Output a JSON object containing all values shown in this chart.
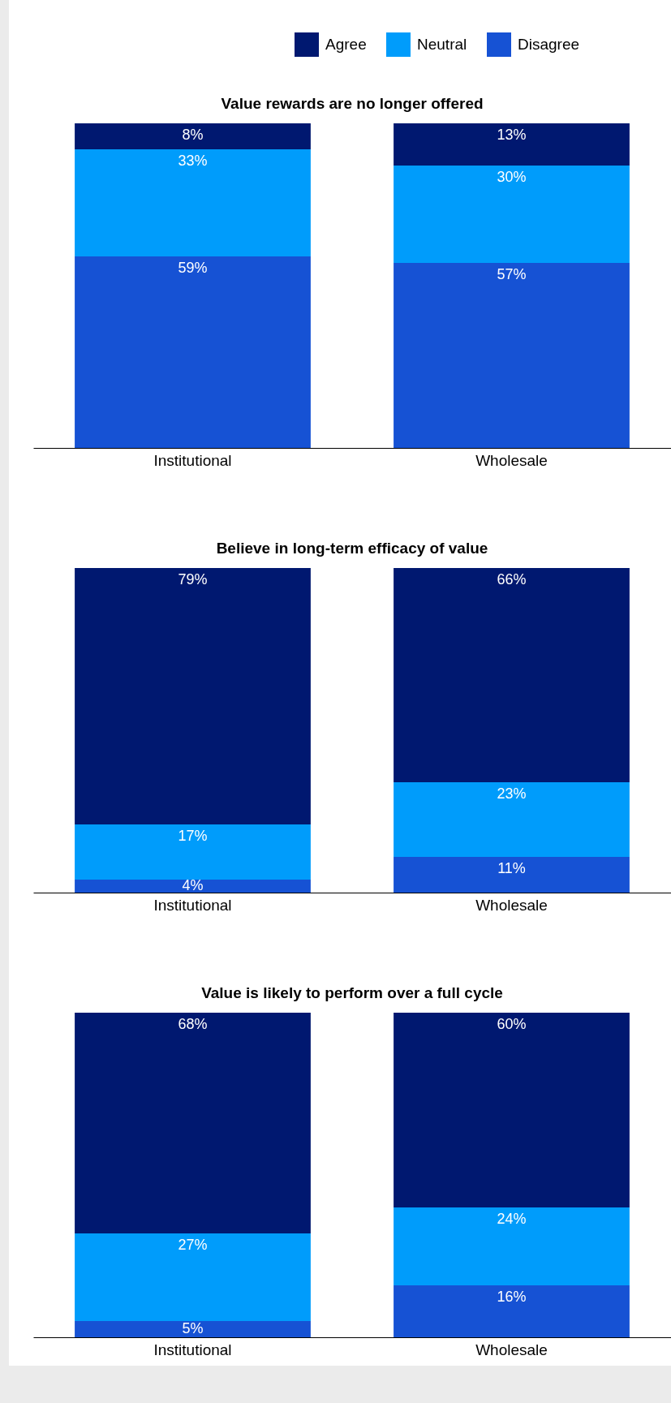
{
  "chart_data": [
    {
      "type": "bar",
      "stacked": true,
      "title": "Value rewards are no longer offered",
      "categories": [
        "Institutional",
        "Wholesale"
      ],
      "legend": "top right",
      "series": [
        {
          "name": "Disagree",
          "color": "#1652d4",
          "values": [
            59,
            57
          ],
          "value_labels": [
            "59%",
            "57%"
          ]
        },
        {
          "name": "Neutral",
          "color": "#009cfb",
          "values": [
            33,
            30
          ],
          "value_labels": [
            "33%",
            "30%"
          ]
        },
        {
          "name": "Agree",
          "color": "#001870",
          "values": [
            8,
            13
          ],
          "value_labels": [
            "8%",
            "13%"
          ]
        }
      ]
    },
    {
      "type": "bar",
      "stacked": true,
      "title": "Believe in long-term efficacy of value",
      "categories": [
        "Institutional",
        "Wholesale"
      ],
      "series": [
        {
          "name": "Disagree",
          "color": "#1652d4",
          "values": [
            4,
            11
          ],
          "value_labels": [
            "4%",
            "11%"
          ]
        },
        {
          "name": "Neutral",
          "color": "#009cfb",
          "values": [
            17,
            23
          ],
          "value_labels": [
            "17%",
            "23%"
          ]
        },
        {
          "name": "Agree",
          "color": "#001870",
          "values": [
            79,
            66
          ],
          "value_labels": [
            "79%",
            "66%"
          ]
        }
      ]
    },
    {
      "type": "bar",
      "stacked": true,
      "title": "Value is likely to perform over a full cycle",
      "categories": [
        "Institutional",
        "Wholesale"
      ],
      "series": [
        {
          "name": "Disagree",
          "color": "#1652d4",
          "values": [
            5,
            16
          ],
          "value_labels": [
            "5%",
            "16%"
          ]
        },
        {
          "name": "Neutral",
          "color": "#009cfb",
          "values": [
            27,
            24
          ],
          "value_labels": [
            "27%",
            "24%"
          ]
        },
        {
          "name": "Agree",
          "color": "#001870",
          "values": [
            68,
            60
          ],
          "value_labels": [
            "68%",
            "60%"
          ]
        }
      ]
    }
  ]
}
